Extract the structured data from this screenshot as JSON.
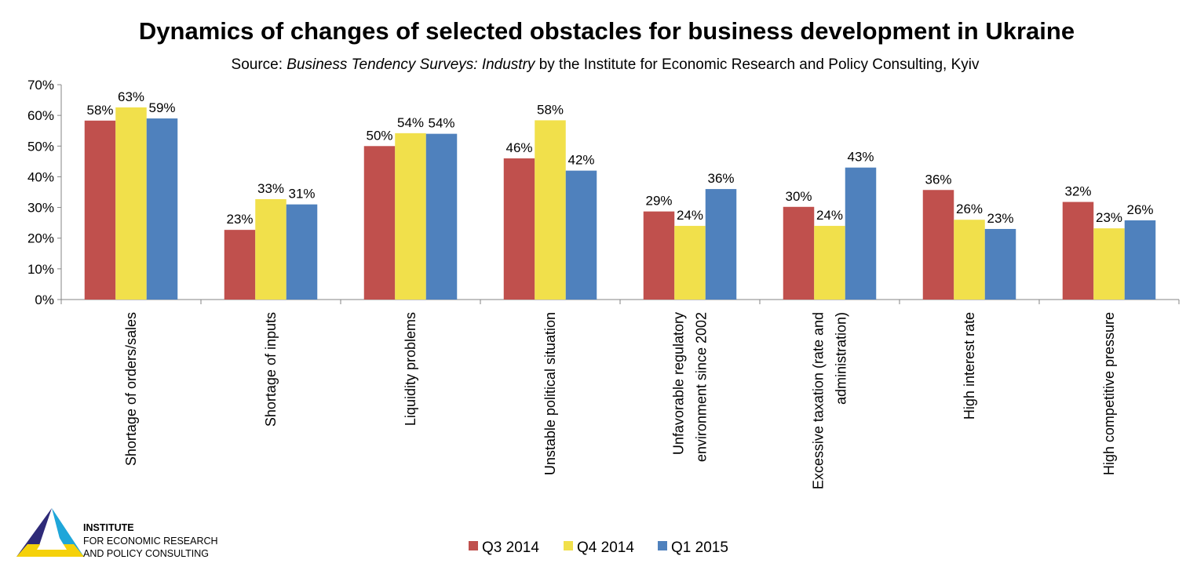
{
  "chart_data": {
    "type": "bar",
    "title": "Dynamics of changes of selected obstacles for business development in Ukraine",
    "subtitle": {
      "prefix": "Source: ",
      "italic": "Business Tendency Surveys: Industry",
      "suffix": " by the Institute for Economic Research and Policy Consulting, Kyiv"
    },
    "categories": [
      [
        "Shortage of orders/sales"
      ],
      [
        "Shortage of inputs"
      ],
      [
        "Liquidity problems"
      ],
      [
        "Unstable political situation"
      ],
      [
        "Unfavorable regulatory",
        "environment since 2002"
      ],
      [
        "Excessive taxation (rate and",
        "administration)"
      ],
      [
        "High interest rate"
      ],
      [
        "High competitive pressure"
      ]
    ],
    "series": [
      {
        "name": "Q3 2014",
        "color": "#c0504d",
        "values": [
          58.3,
          22.7,
          50.0,
          46.0,
          28.7,
          30.2,
          35.7,
          31.8
        ],
        "labels": [
          "58%",
          "23%",
          "50%",
          "46%",
          "29%",
          "30%",
          "36%",
          "32%"
        ]
      },
      {
        "name": "Q4 2014",
        "color": "#f1e04b",
        "values": [
          62.6,
          32.7,
          54.2,
          58.4,
          24.0,
          24.0,
          26.0,
          23.2
        ],
        "labels": [
          "63%",
          "33%",
          "54%",
          "58%",
          "24%",
          "24%",
          "26%",
          "23%"
        ]
      },
      {
        "name": "Q1 2015",
        "color": "#4f81bd",
        "values": [
          59.0,
          31.0,
          54.0,
          42.0,
          36.0,
          43.0,
          23.0,
          25.8
        ],
        "labels": [
          "59%",
          "31%",
          "54%",
          "42%",
          "36%",
          "43%",
          "23%",
          "26%"
        ]
      }
    ],
    "y_ticks": [
      "0%",
      "10%",
      "20%",
      "30%",
      "40%",
      "50%",
      "60%",
      "70%"
    ],
    "ylim": [
      0,
      70
    ],
    "grid": false,
    "legend_position": "bottom"
  },
  "logo": {
    "line1": "INSTITUTE",
    "line2": "FOR ECONOMIC RESEARCH",
    "line3": "AND POLICY CONSULTING"
  }
}
